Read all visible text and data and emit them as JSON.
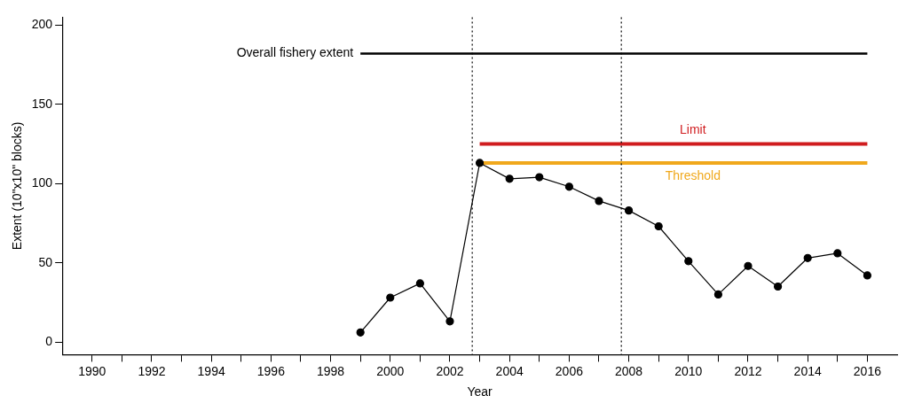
{
  "chart_data": {
    "type": "line",
    "xlabel": "Year",
    "ylabel": "Extent (10\"x10\" blocks)",
    "xlim": [
      1989,
      2017
    ],
    "ylim": [
      -8,
      205
    ],
    "xticks": [
      1990,
      {
        "value": 1991,
        "label": null
      },
      1992,
      {
        "value": 1993,
        "label": null
      },
      1994,
      {
        "value": 1995,
        "label": null
      },
      1996,
      {
        "value": 1997,
        "label": null
      },
      1998,
      {
        "value": 1999,
        "label": null
      },
      2000,
      {
        "value": 2001,
        "label": null
      },
      2002,
      {
        "value": 2003,
        "label": null
      },
      2004,
      {
        "value": 2005,
        "label": null
      },
      2006,
      {
        "value": 2007,
        "label": null
      },
      2008,
      {
        "value": 2009,
        "label": null
      },
      2010,
      {
        "value": 2011,
        "label": null
      },
      2012,
      {
        "value": 2013,
        "label": null
      },
      2014,
      {
        "value": 2015,
        "label": null
      },
      2016
    ],
    "yticks": [
      0,
      50,
      100,
      150,
      200
    ],
    "grid": false,
    "legend": false,
    "series": [
      {
        "color": "#000000",
        "marker": "circle",
        "x": [
          1999,
          2000,
          2001,
          2002,
          2003,
          2004,
          2005,
          2006,
          2007,
          2008,
          2009,
          2010,
          2011,
          2012,
          2013,
          2014,
          2015,
          2016
        ],
        "values": [
          6,
          28,
          37,
          13,
          113,
          103,
          104,
          98,
          89,
          83,
          73,
          51,
          30,
          48,
          35,
          53,
          56,
          42
        ]
      },
      {
        "name": "Overall fishery extent",
        "color": "#000000",
        "marker": "none",
        "x": [
          1999,
          2016
        ],
        "values": [
          182,
          182
        ]
      },
      {
        "name": "Limit",
        "color": "#d01c1f",
        "marker": "none",
        "x": [
          2003,
          2016
        ],
        "values": [
          125,
          125
        ]
      },
      {
        "name": "Threshold",
        "color": "#f0a81c",
        "marker": "none",
        "x": [
          2003,
          2016
        ],
        "values": [
          113,
          113
        ]
      }
    ],
    "ref_lines": [
      {
        "axis": "x",
        "value": 2002.75,
        "color": "#000000",
        "line_style": "dotted"
      },
      {
        "axis": "x",
        "value": 2007.75,
        "color": "#000000",
        "line_style": "dotted"
      }
    ]
  }
}
